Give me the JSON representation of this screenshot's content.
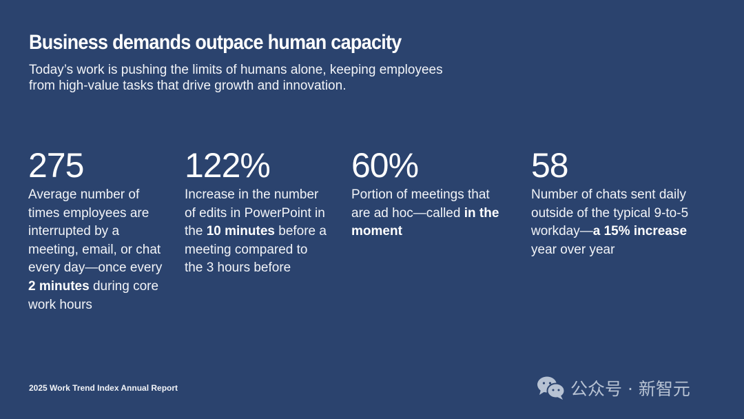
{
  "slide": {
    "title": "Business demands outpace human capacity",
    "subtitle": "Today’s work is pushing the limits of humans alone, keeping employees from high-value tasks that drive growth and innovation.",
    "stats": [
      {
        "value": "275",
        "segments": [
          {
            "text": "Average number of times employees are interrupted by a meeting, email, or chat every day—once every ",
            "bold": false
          },
          {
            "text": "2 minutes",
            "bold": true
          },
          {
            "text": " during core work hours",
            "bold": false
          }
        ]
      },
      {
        "value": "122%",
        "segments": [
          {
            "text": "Increase in the number of edits in PowerPoint in the ",
            "bold": false
          },
          {
            "text": "10 minutes",
            "bold": true
          },
          {
            "text": " before a meeting compared to the 3 hours before",
            "bold": false
          }
        ]
      },
      {
        "value": "60%",
        "segments": [
          {
            "text": "Portion of meetings that are ad hoc—called ",
            "bold": false
          },
          {
            "text": "in the moment",
            "bold": true
          }
        ]
      },
      {
        "value": "58",
        "segments": [
          {
            "text": "Number of chats sent daily outside of the typical 9-to-5 workday—",
            "bold": false
          },
          {
            "text": "a 15% increase",
            "bold": true
          },
          {
            "text": " year over year",
            "bold": false
          }
        ]
      }
    ],
    "footer": "2025 Work Trend Index Annual Report"
  },
  "watermark": {
    "icon": "wechat-icon",
    "text": "公众号 · 新智元"
  },
  "colors": {
    "background": "#2b436e",
    "text": "#ffffff",
    "watermark": "#b7c2d3"
  }
}
